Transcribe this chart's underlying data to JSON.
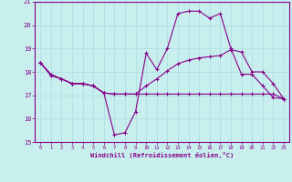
{
  "xlabel": "Windchill (Refroidissement éolien,°C)",
  "bg_color": "#c8eeee",
  "grid_color": "#aadddd",
  "line_color": "#880088",
  "xlim": [
    -0.5,
    23.5
  ],
  "ylim": [
    15.0,
    21.0
  ],
  "yticks": [
    15,
    16,
    17,
    18,
    19,
    20,
    21
  ],
  "xticks": [
    0,
    1,
    2,
    3,
    4,
    5,
    6,
    7,
    8,
    9,
    10,
    11,
    12,
    13,
    14,
    15,
    16,
    17,
    18,
    19,
    20,
    21,
    22,
    23
  ],
  "series": [
    {
      "x": [
        0,
        1,
        2,
        3,
        4,
        5,
        6,
        7,
        8,
        9,
        10,
        11,
        12,
        13,
        14,
        15,
        16,
        17,
        18,
        19,
        20,
        21,
        22,
        23
      ],
      "y": [
        18.4,
        17.9,
        17.7,
        17.5,
        17.5,
        17.4,
        17.1,
        15.3,
        15.4,
        16.3,
        18.8,
        18.1,
        19.0,
        20.5,
        20.6,
        20.6,
        20.3,
        20.5,
        19.0,
        17.9,
        17.9,
        17.4,
        16.9,
        16.85
      ]
    },
    {
      "x": [
        0,
        1,
        2,
        3,
        4,
        5,
        6,
        7,
        8,
        9,
        10,
        11,
        12,
        13,
        14,
        15,
        16,
        17,
        18,
        19,
        20,
        21,
        22,
        23
      ],
      "y": [
        18.4,
        17.85,
        17.7,
        17.5,
        17.5,
        17.4,
        17.1,
        17.05,
        17.05,
        17.05,
        17.05,
        17.05,
        17.05,
        17.05,
        17.05,
        17.05,
        17.05,
        17.05,
        17.05,
        17.05,
        17.05,
        17.05,
        17.05,
        16.85
      ]
    },
    {
      "x": [
        0,
        1,
        2,
        3,
        4,
        5,
        6,
        7,
        8,
        9,
        10,
        11,
        12,
        13,
        14,
        15,
        16,
        17,
        18,
        19,
        20,
        21,
        22,
        23
      ],
      "y": [
        18.4,
        17.85,
        17.7,
        17.5,
        17.5,
        17.4,
        17.1,
        17.05,
        17.05,
        17.05,
        17.4,
        17.7,
        18.05,
        18.35,
        18.5,
        18.6,
        18.65,
        18.7,
        18.95,
        18.85,
        18.0,
        18.0,
        17.5,
        16.85
      ]
    }
  ]
}
